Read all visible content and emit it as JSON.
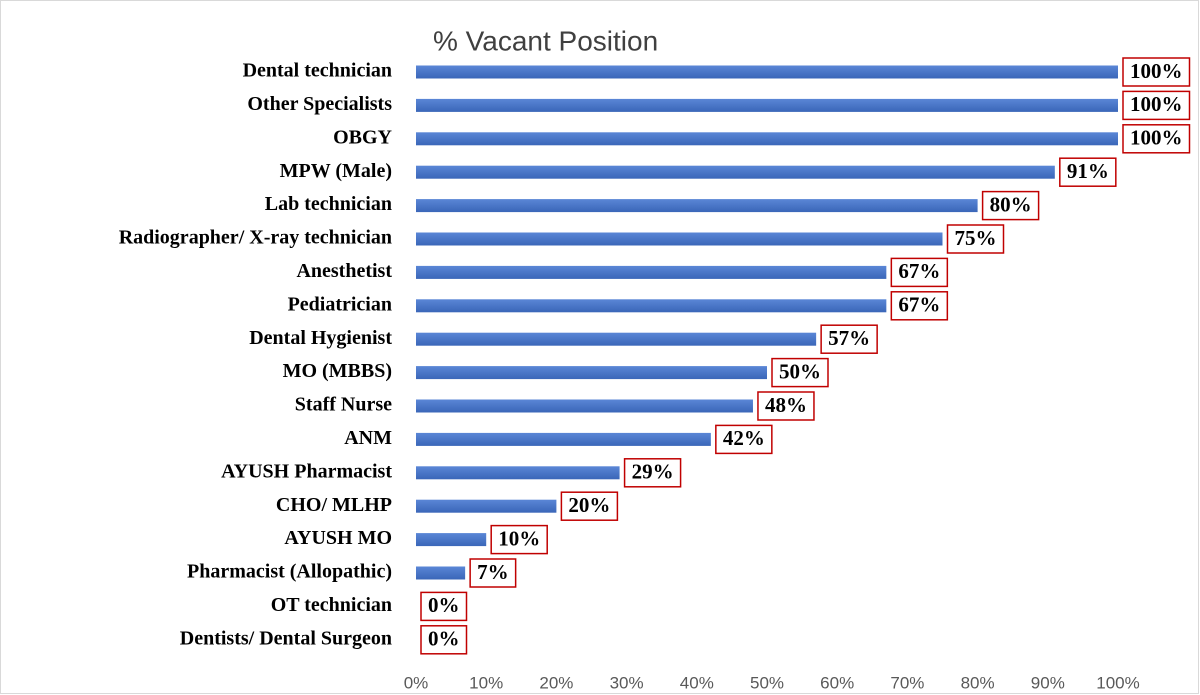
{
  "chart_data": {
    "type": "barh",
    "title": "% Vacant Position",
    "categories": [
      "Dental technician",
      "Other Specialists",
      "OBGY",
      "MPW (Male)",
      "Lab technician",
      "Radiographer/ X-ray technician",
      "Anesthetist",
      "Pediatrician",
      "Dental Hygienist",
      "MO (MBBS)",
      "Staff Nurse",
      "ANM",
      "AYUSH Pharmacist",
      "CHO/ MLHP",
      "AYUSH MO",
      "Pharmacist (Allopathic)",
      "OT technician",
      "Dentists/ Dental Surgeon"
    ],
    "values": [
      100,
      100,
      100,
      91,
      80,
      75,
      67,
      67,
      57,
      50,
      48,
      42,
      29,
      20,
      10,
      7,
      0,
      0
    ],
    "value_labels": [
      "100%",
      "100%",
      "100%",
      "91%",
      "80%",
      "75%",
      "67%",
      "67%",
      "57%",
      "50%",
      "48%",
      "42%",
      "29%",
      "20%",
      "10%",
      "7%",
      "0%",
      "0%"
    ],
    "color": "#4472c4",
    "label_box_color": "#c00000",
    "xlim": [
      0,
      100
    ],
    "xticks": [
      {
        "value": 0,
        "label": "0%"
      },
      {
        "value": 10,
        "label": "10%"
      },
      {
        "value": 20,
        "label": "20%"
      },
      {
        "value": 30,
        "label": "30%"
      },
      {
        "value": 40,
        "label": "40%"
      },
      {
        "value": 50,
        "label": "50%"
      },
      {
        "value": 60,
        "label": "60%"
      },
      {
        "value": 70,
        "label": "70%"
      },
      {
        "value": 80,
        "label": "80%"
      },
      {
        "value": 90,
        "label": "90%"
      },
      {
        "value": 100,
        "label": "100%"
      }
    ]
  }
}
